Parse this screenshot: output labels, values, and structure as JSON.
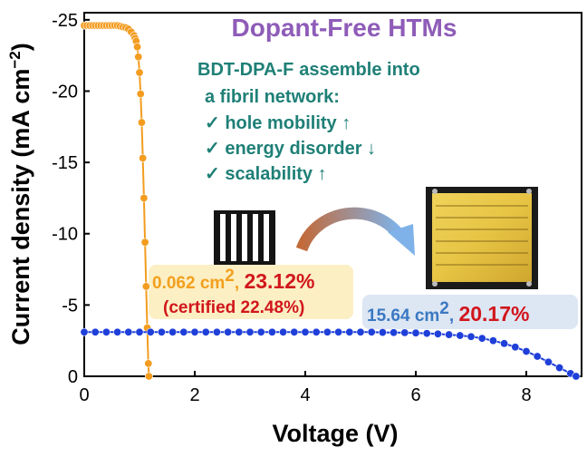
{
  "chart_data": {
    "type": "scatter",
    "title": "",
    "xlabel": "Voltage (V)",
    "ylabel_main": "Current density (mA cm",
    "ylabel_sup": "−2",
    "ylabel_close": ")",
    "xlim": [
      0,
      9.0
    ],
    "ylim": [
      0,
      -25.5
    ],
    "xticks": [
      0,
      2,
      4,
      6,
      8
    ],
    "xtick_labels": [
      "0",
      "2",
      "4",
      "6",
      "8"
    ],
    "yticks": [
      0,
      -5,
      -10,
      -15,
      -20,
      -25
    ],
    "ytick_labels": [
      "0",
      "-5",
      "-10",
      "-15",
      "-20",
      "-25"
    ],
    "grid": false,
    "series": [
      {
        "color": "#f39c1f",
        "marker": "circle",
        "x": [
          0,
          0.05,
          0.1,
          0.15,
          0.2,
          0.25,
          0.3,
          0.35,
          0.4,
          0.45,
          0.5,
          0.55,
          0.6,
          0.65,
          0.7,
          0.75,
          0.8,
          0.85,
          0.9,
          0.92,
          0.94,
          0.96,
          0.98,
          1.0,
          1.02,
          1.04,
          1.06,
          1.08,
          1.1,
          1.12,
          1.14,
          1.16,
          1.17
        ],
        "y": [
          -24.6,
          -24.6,
          -24.6,
          -24.6,
          -24.6,
          -24.6,
          -24.6,
          -24.6,
          -24.6,
          -24.6,
          -24.6,
          -24.6,
          -24.6,
          -24.55,
          -24.5,
          -24.45,
          -24.35,
          -24.15,
          -23.9,
          -23.7,
          -23.5,
          -23.1,
          -22.4,
          -21.3,
          -19.8,
          -17.8,
          -15.3,
          -12.5,
          -9.4,
          -6.3,
          -3.4,
          -0.9,
          0.0
        ]
      },
      {
        "color": "#1f3fd9",
        "marker": "circle",
        "x": [
          0,
          0.2,
          0.4,
          0.6,
          0.8,
          1.0,
          1.2,
          1.4,
          1.6,
          1.8,
          2.0,
          2.2,
          2.4,
          2.6,
          2.8,
          3.0,
          3.2,
          3.4,
          3.6,
          3.8,
          4.0,
          4.2,
          4.4,
          4.6,
          4.8,
          5.0,
          5.2,
          5.4,
          5.6,
          5.8,
          6.0,
          6.2,
          6.4,
          6.6,
          6.8,
          7.0,
          7.2,
          7.4,
          7.6,
          7.8,
          8.0,
          8.2,
          8.4,
          8.6,
          8.8,
          8.9
        ],
        "y": [
          -3.1,
          -3.1,
          -3.1,
          -3.1,
          -3.1,
          -3.1,
          -3.1,
          -3.1,
          -3.1,
          -3.1,
          -3.1,
          -3.1,
          -3.1,
          -3.1,
          -3.1,
          -3.1,
          -3.1,
          -3.1,
          -3.1,
          -3.1,
          -3.1,
          -3.1,
          -3.1,
          -3.1,
          -3.1,
          -3.1,
          -3.1,
          -3.08,
          -3.07,
          -3.06,
          -3.04,
          -3.01,
          -2.97,
          -2.92,
          -2.86,
          -2.78,
          -2.66,
          -2.5,
          -2.3,
          -2.05,
          -1.75,
          -1.4,
          -1.0,
          -0.6,
          -0.2,
          0.0
        ]
      }
    ],
    "annotations": {
      "headline": "Dopant-Free HTMs",
      "feature_head_bold": "BDT-DPA-F",
      "feature_head_rest": "assemble  into",
      "feature_line2": "a fibril network:",
      "features": [
        "✓  hole mobility ↑",
        "✓  energy disorder ↓",
        "✓  scalability ↑"
      ],
      "small_area": "0.062 cm",
      "small_area_sup": "2",
      "small_area_sep": ", ",
      "small_pce": "23.12%",
      "small_certified": "(certified 22.48%)",
      "large_area": "15.64 cm",
      "large_area_sup": "2",
      "large_area_sep": ", ",
      "large_pce": "20.17%"
    },
    "colors": {
      "headline": "#8e5cb8",
      "feature_text": "#1f8077",
      "small_area_text": "#f2a01e",
      "pce_red": "#d1161c",
      "large_area_text": "#3b78c2",
      "small_box": "#fcefc4",
      "large_box": "#dde6f3",
      "arrow_start": "#c26a3a",
      "arrow_end": "#7fb2e8"
    }
  }
}
